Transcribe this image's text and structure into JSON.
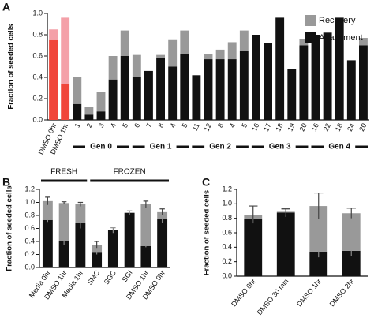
{
  "chart_data": [
    {
      "type": "bar",
      "panel": "A",
      "y_label": "Fraction of seeded cells",
      "categories": [
        "DMSO 0hr",
        "DMSO 1hr",
        "1",
        "2",
        "3",
        "4",
        "5",
        "6",
        "7",
        "8",
        "4",
        "5",
        "11",
        "12",
        "8",
        "4",
        "5",
        "16",
        "17",
        "18",
        "19",
        "20",
        "16",
        "22",
        "18",
        "24",
        "20"
      ],
      "category_groups": [
        null,
        null,
        "Gen 0",
        "Gen 0",
        "Gen 0",
        "Gen 0",
        "Gen 0",
        "Gen 1",
        "Gen 1",
        "Gen 1",
        "Gen 1",
        "Gen 1",
        "Gen 2",
        "Gen 2",
        "Gen 2",
        "Gen 2",
        "Gen 2",
        "Gen 3",
        "Gen 3",
        "Gen 3",
        "Gen 3",
        "Gen 3",
        "Gen 4",
        "Gen 4",
        "Gen 4",
        "Gen 4",
        "Gen 4"
      ],
      "group_position": "bottom",
      "series": [
        {
          "name": "Attachment",
          "color": "#111111",
          "colors": [
            "#f0453a",
            "#f0453a",
            "#111111",
            "#111111",
            "#111111",
            "#111111",
            "#111111",
            "#111111",
            "#111111",
            "#111111",
            "#111111",
            "#111111",
            "#111111",
            "#111111",
            "#111111",
            "#111111",
            "#111111",
            "#111111",
            "#111111",
            "#111111",
            "#111111",
            "#111111",
            "#111111",
            "#111111",
            "#111111",
            "#111111",
            "#111111"
          ],
          "values": [
            0.75,
            0.34,
            0.15,
            0.05,
            0.08,
            0.38,
            0.6,
            0.4,
            0.46,
            0.58,
            0.5,
            0.62,
            0.42,
            0.57,
            0.57,
            0.57,
            0.65,
            0.8,
            0.72,
            0.96,
            0.48,
            0.7,
            0.8,
            0.82,
            0.96,
            0.56,
            0.7
          ]
        },
        {
          "name": "Recovery",
          "color": "#999999",
          "colors": [
            "#f4a0a8",
            "#f4a0a8",
            "#999999",
            "#999999",
            "#999999",
            "#999999",
            "#999999",
            "#999999",
            "#999999",
            "#999999",
            "#999999",
            "#999999",
            "#999999",
            "#999999",
            "#999999",
            "#999999",
            "#999999",
            "#999999",
            "#999999",
            "#999999",
            "#999999",
            "#999999",
            "#999999",
            "#999999",
            "#999999",
            "#999999",
            "#999999"
          ],
          "values": [
            0.1,
            0.62,
            0.25,
            0.07,
            0.18,
            0.22,
            0.24,
            0.21,
            0,
            0.03,
            0.25,
            0.22,
            0,
            0.05,
            0.09,
            0.16,
            0.19,
            0,
            0,
            0,
            0,
            0.06,
            0,
            0,
            0,
            0,
            0.07
          ]
        }
      ],
      "ylim": [
        0,
        1.0
      ],
      "yticks": [
        {
          "value": 0,
          "label": "0.0"
        },
        0.2,
        0.4,
        0.6,
        0.8,
        {
          "value": 1,
          "label": "1.0"
        }
      ],
      "legend": "upper right"
    },
    {
      "type": "bar",
      "panel": "B",
      "y_label": "Fraction of seeded cells",
      "categories": [
        "Media 0hr",
        "DMSO 1hr",
        "Media 1hr",
        "SMC",
        "SGC",
        "SGI",
        "DMSO 1hr",
        "DMSO 0hr"
      ],
      "category_groups": [
        "FRESH",
        "FRESH",
        "FRESH",
        "FROZEN",
        "FROZEN",
        "FROZEN",
        "FROZEN",
        "FROZEN"
      ],
      "group_position": "top",
      "series": [
        {
          "name": "Attachment",
          "color": "#111111",
          "values": [
            0.73,
            0.4,
            0.68,
            0.24,
            0.57,
            0.84,
            0.33,
            0.74
          ],
          "errors": [
            0.03,
            0.06,
            0.08,
            0.04,
            0.04,
            0.03,
            0.02,
            0.06
          ]
        },
        {
          "name": "Recovery",
          "color": "#999999",
          "values": [
            0.29,
            0.59,
            0.29,
            0.11,
            0,
            0,
            0.64,
            0.11
          ],
          "errors": [
            0.06,
            0.02,
            0.03,
            0.05,
            null,
            null,
            0.05,
            0.05
          ]
        }
      ],
      "ylim": [
        0,
        1.2
      ],
      "yticks": [
        {
          "value": 0,
          "label": "0.0"
        },
        0.2,
        0.4,
        0.6,
        0.8,
        {
          "value": 1,
          "label": "1.0"
        },
        1.2
      ]
    },
    {
      "type": "bar",
      "panel": "C",
      "y_label": "Fraction of seeded cells",
      "categories": [
        "DMSO 0hr",
        "DMSO 30 min",
        "DMSO 1hr",
        "DMSO 2hr"
      ],
      "series": [
        {
          "name": "Attachment",
          "color": "#111111",
          "values": [
            0.79,
            0.88,
            0.34,
            0.35
          ],
          "errors": [
            0.05,
            0.06,
            0.08,
            0.07
          ]
        },
        {
          "name": "Recovery",
          "color": "#999999",
          "values": [
            0.06,
            0.01,
            0.63,
            0.52
          ],
          "errors": [
            0.12,
            0.04,
            0.18,
            0.07
          ]
        }
      ],
      "ylim": [
        0,
        1.2
      ],
      "yticks": [
        {
          "value": 0,
          "label": "0.0"
        },
        0.2,
        0.4,
        0.6,
        0.8,
        {
          "value": 1,
          "label": "1.0"
        },
        1.2
      ]
    }
  ]
}
